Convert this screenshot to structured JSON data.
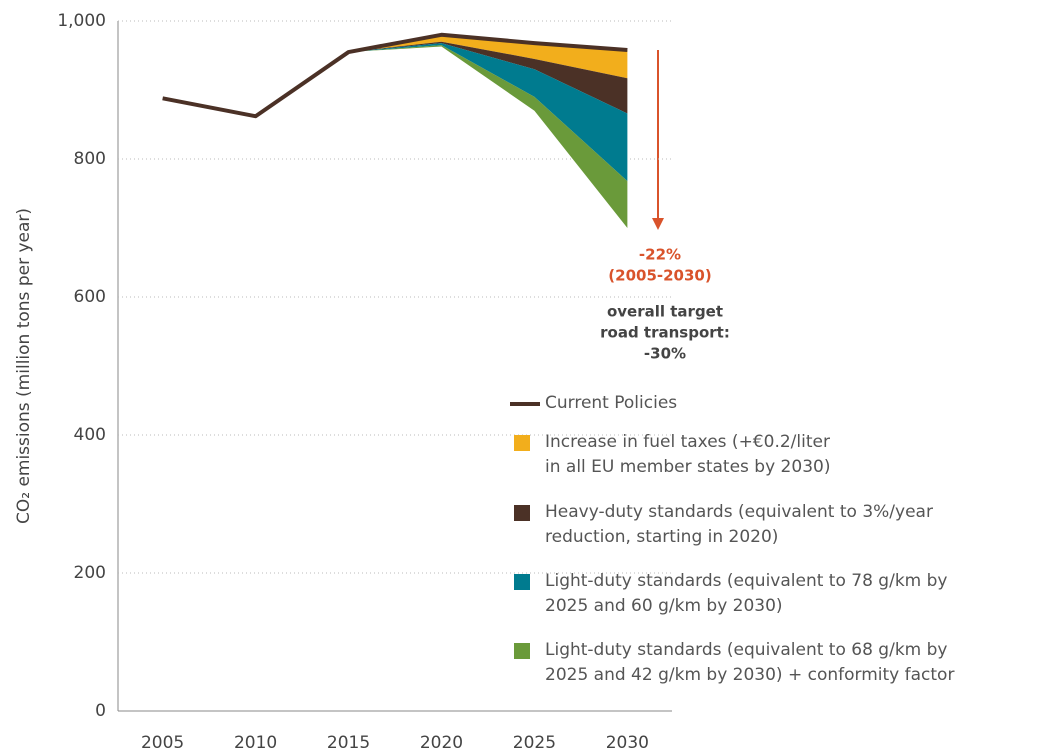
{
  "chart_data": {
    "type": "line",
    "ylabel": "CO₂ emissions (million tons per year)",
    "x": [
      2005,
      2010,
      2015,
      2020,
      2025,
      2030
    ],
    "xlim": [
      2002.6,
      2032.4
    ],
    "xticks": [
      2005,
      2010,
      2015,
      2020,
      2025,
      2030
    ],
    "ylim": [
      0,
      1000
    ],
    "yticks": [
      0,
      200,
      400,
      600,
      800,
      {
        "value": 1000,
        "label": "1,000"
      }
    ],
    "grid": true,
    "series": [
      {
        "name": "Current Policies",
        "type": "line",
        "color": "#4b3126",
        "values": [
          888,
          862,
          955,
          980,
          968,
          958
        ]
      },
      {
        "name": "Increase in fuel taxes (+€0.2/liter\nin all EU member states by 2030)",
        "type": "area",
        "color": "#f2ae1c",
        "values": [
          null,
          null,
          0,
          10,
          23,
          41
        ]
      },
      {
        "name": "Heavy-duty standards (equivalent to 3%/year\nreduction, starting in 2020)",
        "type": "area",
        "color": "#4b3126",
        "values": [
          null,
          null,
          0,
          2,
          15,
          51
        ]
      },
      {
        "name": "Light-duty standards (equivalent to 78 g/km by\n2025 and 60 g/km by 2030)",
        "type": "area",
        "color": "#007b8f",
        "values": [
          null,
          null,
          0,
          3,
          40,
          98
        ]
      },
      {
        "name": "Light-duty standards (equivalent to 68 g/km by\n2025 and 42 g/km by 2030) + conformity factor",
        "type": "area",
        "color": "#6a9a3a",
        "values": [
          null,
          null,
          0,
          2,
          20,
          68
        ]
      }
    ],
    "annotations": [
      "-22%",
      "(2005-2030)",
      "overall target",
      "road transport:",
      "-30%"
    ]
  }
}
